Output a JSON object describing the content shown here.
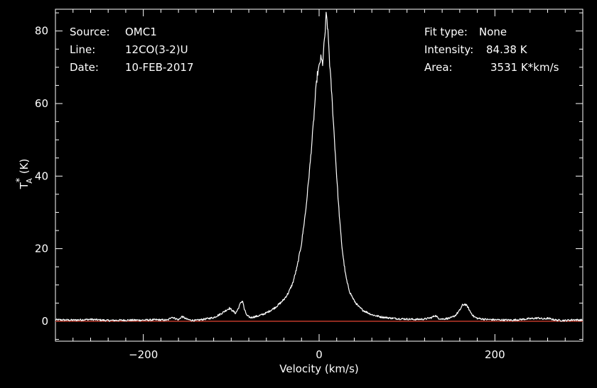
{
  "info": {
    "source_label": "Source:",
    "source_value": "OMC1",
    "line_label": "Line:",
    "line_value": "12CO(3-2)U",
    "date_label": "Date:",
    "date_value": "10-FEB-2017",
    "fit_label": "Fit type:",
    "fit_value": "None",
    "intensity_label": "Intensity:",
    "intensity_value": "84.38 K",
    "area_label": "Area:",
    "area_value": "3531 K*km/s"
  },
  "colors": {
    "background": "#000000",
    "foreground": "#ffffff",
    "baseline": "#c0392b"
  },
  "chart_data": {
    "type": "line",
    "xlabel": "Velocity (km/s)",
    "ylabel_main": "T",
    "ylabel_sup": "*",
    "ylabel_sub": "A",
    "ylabel_unit": "(K)",
    "xlim": [
      -300,
      300
    ],
    "ylim": [
      -5.5,
      86
    ],
    "xticks": [
      -200,
      0,
      200
    ],
    "xtick_labels": [
      "−200",
      "0",
      "200"
    ],
    "yticks": [
      0,
      20,
      40,
      60,
      80
    ],
    "ytick_labels": [
      "0",
      "20",
      "40",
      "60",
      "80"
    ],
    "baseline_y": 0,
    "series": [
      {
        "x": [
          -300,
          -280,
          -260,
          -240,
          -220,
          -200,
          -185,
          -172,
          -168,
          -160,
          -156,
          -150,
          -146,
          -140,
          -130,
          -120,
          -112,
          -106,
          -102,
          -98,
          -95,
          -92,
          -89,
          -87,
          -85,
          -82,
          -78,
          -74,
          -70,
          -65,
          -60,
          -55,
          -50,
          -45,
          -40,
          -35,
          -30,
          -25,
          -20,
          -15,
          -10,
          -6,
          -4,
          -2,
          0,
          1,
          2,
          4,
          5,
          6,
          7,
          8,
          9,
          10,
          11,
          12,
          14,
          16,
          18,
          20,
          22,
          24,
          26,
          28,
          30,
          32,
          35,
          40,
          45,
          50,
          55,
          60,
          70,
          80,
          90,
          100,
          110,
          120,
          128,
          132,
          136,
          140,
          150,
          155,
          160,
          163,
          166,
          169,
          172,
          176,
          180,
          190,
          200,
          220,
          240,
          250,
          255,
          260,
          270,
          280,
          290,
          300
        ],
        "y": [
          0.4,
          0.3,
          0.5,
          0.2,
          0.3,
          0.3,
          0.4,
          0.3,
          1.2,
          0.4,
          1.3,
          0.5,
          0.3,
          0.2,
          0.6,
          1.0,
          2.0,
          3.0,
          3.6,
          2.8,
          2.2,
          3.5,
          5.2,
          5.6,
          3.2,
          1.5,
          1.0,
          1.2,
          1.4,
          1.8,
          2.3,
          3.0,
          3.8,
          4.8,
          6.0,
          7.8,
          10.5,
          15.0,
          21.5,
          31.0,
          44.0,
          56.0,
          63.0,
          68.0,
          70.0,
          71.5,
          72.5,
          71.0,
          74.0,
          77.5,
          80.0,
          84.3,
          83.0,
          79.5,
          76.0,
          71.0,
          64.0,
          56.0,
          48.0,
          40.0,
          32.5,
          26.0,
          20.5,
          16.5,
          13.0,
          10.5,
          8.0,
          5.6,
          4.0,
          3.0,
          2.4,
          1.8,
          1.2,
          0.9,
          0.7,
          0.6,
          0.5,
          0.6,
          1.0,
          1.6,
          0.8,
          0.6,
          0.9,
          1.6,
          3.0,
          4.4,
          4.7,
          4.0,
          2.6,
          1.3,
          0.8,
          0.5,
          0.4,
          0.3,
          0.7,
          0.9,
          0.6,
          0.8,
          0.3,
          0.2,
          0.4,
          0.3
        ]
      }
    ]
  }
}
